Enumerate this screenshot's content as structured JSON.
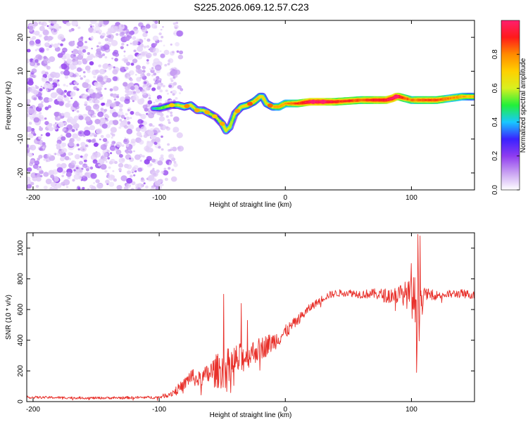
{
  "title": "S225.2026.069.12.57.C23",
  "colors": {
    "snr_line": "#e8302a",
    "axes": "#000000",
    "colorbar_stops": [
      "#ffffff",
      "#c9a2f2",
      "#8f3cf0",
      "#3a22ff",
      "#18c8ff",
      "#22f03a",
      "#d8f020",
      "#ffd000",
      "#ff8a00",
      "#ff1a1a",
      "#ff1f6e"
    ]
  },
  "chart_data": [
    {
      "type": "heatmap",
      "name": "spectrogram",
      "title": "S225.2026.069.12.57.C23",
      "xlabel": "Height of straight line (km)",
      "ylabel": "Frequency (Hz)",
      "xlim": [
        -205,
        150
      ],
      "ylim": [
        -25,
        25
      ],
      "xticks": [
        -200,
        -100,
        0,
        100
      ],
      "yticks": [
        -20,
        -10,
        0,
        10,
        20
      ],
      "grid": false,
      "noise_region_x": [
        -205,
        -90
      ],
      "ridge_width_hz": 1.2,
      "ridge": {
        "x": [
          -105,
          -100,
          -95,
          -90,
          -85,
          -80,
          -75,
          -70,
          -65,
          -60,
          -55,
          -50,
          -47,
          -44,
          -40,
          -35,
          -30,
          -25,
          -20,
          -18,
          -15,
          -10,
          -5,
          0,
          10,
          20,
          30,
          40,
          60,
          80,
          85,
          88,
          90,
          95,
          100,
          110,
          120,
          130,
          140,
          150
        ],
        "y": [
          -1,
          -1,
          -0.5,
          0,
          0,
          -0.5,
          0,
          -1.5,
          -1.5,
          -2.5,
          -3.5,
          -5.5,
          -7.5,
          -6.5,
          -2.5,
          -0.5,
          0,
          1,
          2.5,
          2.5,
          0.5,
          -0.5,
          -0.5,
          0.5,
          0.5,
          1,
          1,
          1,
          1.5,
          1.5,
          2,
          2.5,
          2.5,
          2,
          1.5,
          1.5,
          1.5,
          2,
          2.5,
          2.5
        ],
        "amplitude": [
          0.35,
          0.45,
          0.5,
          0.5,
          0.55,
          0.6,
          0.6,
          0.55,
          0.55,
          0.55,
          0.5,
          0.55,
          0.6,
          0.55,
          0.55,
          0.6,
          0.65,
          0.65,
          0.65,
          0.6,
          0.6,
          0.65,
          0.7,
          0.7,
          0.8,
          0.95,
          0.95,
          0.85,
          0.8,
          0.9,
          0.95,
          0.95,
          0.9,
          0.8,
          0.75,
          0.8,
          0.8,
          0.75,
          0.7,
          0.65
        ]
      }
    },
    {
      "type": "line",
      "name": "snr",
      "xlabel": "Height of straight line (km)",
      "ylabel": "SNR (10 * v/v)",
      "xlim": [
        -205,
        150
      ],
      "ylim": [
        0,
        1100
      ],
      "xticks": [
        -200,
        -100,
        0,
        100
      ],
      "yticks": [
        0,
        200,
        400,
        600,
        800,
        1000
      ],
      "grid": false,
      "envelope": {
        "x": [
          -205,
          -150,
          -100,
          -90,
          -80,
          -75,
          -70,
          -65,
          -60,
          -55,
          -50,
          -45,
          -40,
          -35,
          -30,
          -25,
          -20,
          -15,
          -10,
          -5,
          0,
          5,
          10,
          15,
          20,
          25,
          30,
          35,
          40,
          50,
          60,
          70,
          80,
          90,
          95,
          100,
          103,
          105,
          108,
          110,
          120,
          130,
          140,
          150
        ],
        "y": [
          30,
          25,
          30,
          60,
          120,
          180,
          150,
          170,
          200,
          220,
          230,
          250,
          280,
          300,
          320,
          340,
          360,
          380,
          400,
          430,
          460,
          500,
          540,
          580,
          620,
          650,
          680,
          700,
          710,
          715,
          705,
          710,
          700,
          710,
          720,
          700,
          680,
          650,
          700,
          710,
          700,
          705,
          710,
          700
        ],
        "noise": [
          10,
          10,
          12,
          30,
          50,
          70,
          60,
          70,
          100,
          140,
          150,
          160,
          150,
          130,
          110,
          100,
          95,
          90,
          80,
          70,
          60,
          50,
          45,
          40,
          35,
          30,
          30,
          30,
          30,
          30,
          35,
          40,
          60,
          80,
          100,
          150,
          250,
          400,
          150,
          50,
          35,
          35,
          35,
          35
        ]
      },
      "annotated_peaks": [
        {
          "x": -49,
          "y": 700
        },
        {
          "x": -35,
          "y": 640
        },
        {
          "x": -30,
          "y": 530
        },
        {
          "x": 100,
          "y": 900
        },
        {
          "x": 105,
          "y": 1090
        },
        {
          "x": 104,
          "y": 190
        },
        {
          "x": 107,
          "y": 1080
        }
      ]
    },
    {
      "type": "colorbar",
      "name": "amplitude-colorbar",
      "label": "Normalized spectral amplitude",
      "range": [
        0,
        1
      ],
      "ticks": [
        "0.0",
        "0.2",
        "0.4",
        "0.6",
        "0.8"
      ]
    }
  ]
}
